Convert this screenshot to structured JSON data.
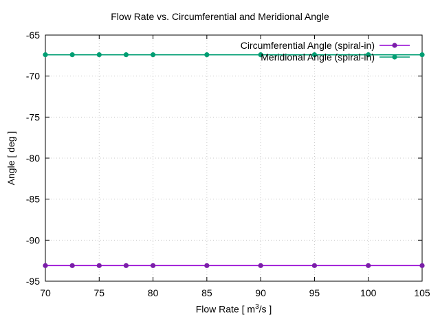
{
  "chart_data": {
    "type": "line",
    "title": "Flow Rate vs. Circumferential and Meridional Angle",
    "xlabel_prefix": "Flow Rate [ m",
    "xlabel_sup": "3",
    "xlabel_suffix": "/s ]",
    "ylabel": "Angle [ deg ]",
    "xlim": [
      70,
      105
    ],
    "ylim": [
      -95,
      -65
    ],
    "xticks": [
      70,
      75,
      80,
      85,
      90,
      95,
      100,
      105
    ],
    "yticks": [
      -95,
      -90,
      -85,
      -80,
      -75,
      -70,
      -65
    ],
    "grid": true,
    "legend_position": "top-right",
    "series": [
      {
        "name": "Circumferential Angle (spiral-in)",
        "color": "#9400d3",
        "marker_color": "#7a1ea8",
        "x": [
          70,
          72.5,
          75,
          77.5,
          80,
          85,
          90,
          95,
          100,
          105
        ],
        "y": [
          -93.1,
          -93.1,
          -93.1,
          -93.1,
          -93.1,
          -93.1,
          -93.1,
          -93.1,
          -93.1,
          -93.1
        ]
      },
      {
        "name": "Meridional Angle (spiral-in)",
        "color": "#009e73",
        "marker_color": "#009e73",
        "x": [
          70,
          72.5,
          75,
          77.5,
          80,
          85,
          90,
          95,
          100,
          105
        ],
        "y": [
          -67.4,
          -67.4,
          -67.4,
          -67.4,
          -67.4,
          -67.4,
          -67.4,
          -67.4,
          -67.4,
          -67.4
        ]
      }
    ]
  }
}
